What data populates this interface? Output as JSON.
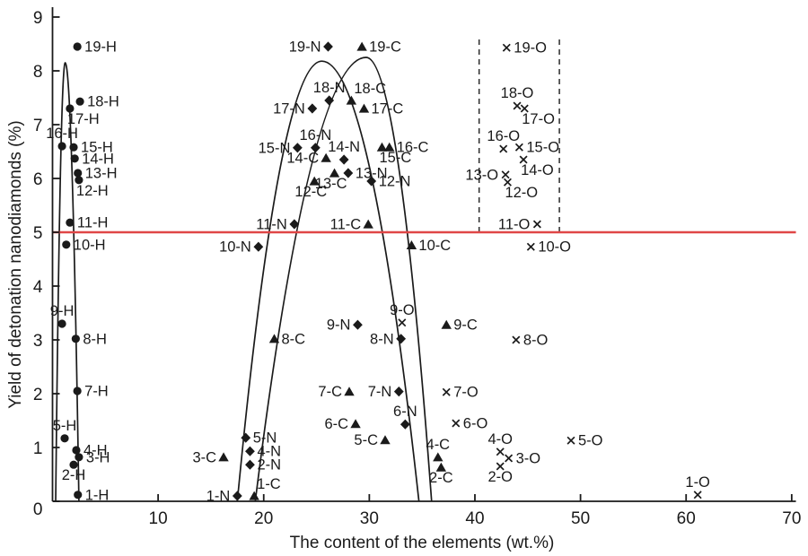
{
  "chart_data": {
    "type": "scatter",
    "title": "",
    "xlabel": "The content of the elements (wt.%)",
    "ylabel": "Yield of detonation nanodiamonds (%)",
    "xlim": [
      0,
      70
    ],
    "ylim": [
      0,
      9
    ],
    "x_ticks": [
      10,
      20,
      30,
      40,
      50,
      60,
      70
    ],
    "y_ticks": [
      0,
      1,
      2,
      3,
      4,
      5,
      6,
      7,
      8,
      9
    ],
    "grid": false,
    "legend_position": "none",
    "colors": {
      "ink": "#1a1a1a",
      "reference_line": "#e04747"
    },
    "reference_line": {
      "y": 5,
      "x_from": 0,
      "x_to": 70.4
    },
    "dashed_vlines": [
      {
        "x": 40.4,
        "y_from": 5,
        "y_to": 8.6
      },
      {
        "x": 48.0,
        "y_from": 5,
        "y_to": 8.6
      }
    ],
    "envelopes": [
      {
        "name": "H",
        "apex_x": 1.2,
        "apex_y": 8.15,
        "base_left_x": 0.3,
        "base_right_x": 2.5
      },
      {
        "name": "N",
        "apex_x": 25.5,
        "apex_y": 8.18,
        "base_left_x": 17.5,
        "base_right_x": 34.7
      },
      {
        "name": "C",
        "apex_x": 29.7,
        "apex_y": 8.25,
        "base_left_x": 19.2,
        "base_right_x": 35.9
      }
    ],
    "series": [
      {
        "name": "H",
        "marker": "circle",
        "points": [
          {
            "label": "1-H",
            "x": 2.4,
            "y": 0.12,
            "label_side": "right"
          },
          {
            "label": "2-H",
            "x": 2.0,
            "y": 0.68,
            "label_side": "below"
          },
          {
            "label": "3-H",
            "x": 2.5,
            "y": 0.82,
            "label_side": "right"
          },
          {
            "label": "4-H",
            "x": 2.25,
            "y": 0.95,
            "label_side": "right"
          },
          {
            "label": "5-H",
            "x": 1.15,
            "y": 1.17,
            "label_side": "above"
          },
          {
            "label": "7-H",
            "x": 2.35,
            "y": 2.05,
            "label_side": "right"
          },
          {
            "label": "8-H",
            "x": 2.2,
            "y": 3.02,
            "label_side": "right"
          },
          {
            "label": "9-H",
            "x": 0.9,
            "y": 3.3,
            "label_side": "above"
          },
          {
            "label": "10-H",
            "x": 1.3,
            "y": 4.77,
            "label_side": "right"
          },
          {
            "label": "11-H",
            "x": 1.65,
            "y": 5.18,
            "label_side": "right"
          },
          {
            "label": "12-H",
            "x": 2.5,
            "y": 5.97,
            "label_side": "below-right"
          },
          {
            "label": "13-H",
            "x": 2.4,
            "y": 6.1,
            "label_side": "right"
          },
          {
            "label": "14-H",
            "x": 2.1,
            "y": 6.37,
            "label_side": "right"
          },
          {
            "label": "15-H",
            "x": 2.0,
            "y": 6.58,
            "label_side": "right"
          },
          {
            "label": "16-H",
            "x": 0.9,
            "y": 6.6,
            "label_side": "above"
          },
          {
            "label": "17-H",
            "x": 1.65,
            "y": 7.3,
            "label_side": "below-right"
          },
          {
            "label": "18-H",
            "x": 2.6,
            "y": 7.43,
            "label_side": "right"
          },
          {
            "label": "19-H",
            "x": 2.35,
            "y": 8.45,
            "label_side": "right"
          }
        ]
      },
      {
        "name": "N",
        "marker": "diamond",
        "points": [
          {
            "label": "1-N",
            "x": 17.5,
            "y": 0.1,
            "label_side": "left"
          },
          {
            "label": "2-N",
            "x": 18.7,
            "y": 0.68,
            "label_side": "right"
          },
          {
            "label": "4-N",
            "x": 18.7,
            "y": 0.93,
            "label_side": "right"
          },
          {
            "label": "5-N",
            "x": 18.3,
            "y": 1.18,
            "label_side": "right"
          },
          {
            "label": "6-N",
            "x": 33.4,
            "y": 1.43,
            "label_side": "above"
          },
          {
            "label": "7-N",
            "x": 32.8,
            "y": 2.04,
            "label_side": "left"
          },
          {
            "label": "8-N",
            "x": 33.0,
            "y": 3.02,
            "label_side": "left"
          },
          {
            "label": "9-N",
            "x": 28.9,
            "y": 3.28,
            "label_side": "left"
          },
          {
            "label": "10-N",
            "x": 19.5,
            "y": 4.73,
            "label_side": "left"
          },
          {
            "label": "11-N",
            "x": 22.9,
            "y": 5.15,
            "label_side": "left"
          },
          {
            "label": "12-N",
            "x": 30.2,
            "y": 5.95,
            "label_side": "right"
          },
          {
            "label": "13-N",
            "x": 28.0,
            "y": 6.1,
            "label_side": "right"
          },
          {
            "label": "14-N",
            "x": 27.6,
            "y": 6.35,
            "label_side": "above"
          },
          {
            "label": "15-N",
            "x": 23.2,
            "y": 6.57,
            "label_side": "left"
          },
          {
            "label": "16-N",
            "x": 24.9,
            "y": 6.57,
            "label_side": "above"
          },
          {
            "label": "17-N",
            "x": 24.6,
            "y": 7.3,
            "label_side": "left"
          },
          {
            "label": "18-N",
            "x": 26.2,
            "y": 7.45,
            "label_side": "above"
          },
          {
            "label": "19-N",
            "x": 26.1,
            "y": 8.45,
            "label_side": "left"
          }
        ]
      },
      {
        "name": "C",
        "marker": "triangle",
        "points": [
          {
            "label": "1-C",
            "x": 19.1,
            "y": 0.1,
            "label_side": "above-right"
          },
          {
            "label": "2-C",
            "x": 36.8,
            "y": 0.63,
            "label_side": "below"
          },
          {
            "label": "3-C",
            "x": 16.2,
            "y": 0.82,
            "label_side": "left"
          },
          {
            "label": "4-C",
            "x": 36.5,
            "y": 0.82,
            "label_side": "above"
          },
          {
            "label": "5-C",
            "x": 31.5,
            "y": 1.14,
            "label_side": "left"
          },
          {
            "label": "6-C",
            "x": 28.7,
            "y": 1.44,
            "label_side": "left"
          },
          {
            "label": "7-C",
            "x": 28.1,
            "y": 2.04,
            "label_side": "left"
          },
          {
            "label": "8-C",
            "x": 21.0,
            "y": 3.02,
            "label_side": "right"
          },
          {
            "label": "9-C",
            "x": 37.3,
            "y": 3.28,
            "label_side": "right"
          },
          {
            "label": "10-C",
            "x": 34.0,
            "y": 4.76,
            "label_side": "right"
          },
          {
            "label": "11-C",
            "x": 29.9,
            "y": 5.15,
            "label_side": "left"
          },
          {
            "label": "12-C",
            "x": 24.8,
            "y": 5.95,
            "label_side": "below-left"
          },
          {
            "label": "13-C",
            "x": 26.7,
            "y": 6.1,
            "label_side": "below-left"
          },
          {
            "label": "14-C",
            "x": 25.9,
            "y": 6.38,
            "label_side": "left"
          },
          {
            "label": "15-C",
            "x": 31.2,
            "y": 6.58,
            "label_side": "below-right"
          },
          {
            "label": "16-C",
            "x": 31.9,
            "y": 6.58,
            "label_side": "right"
          },
          {
            "label": "17-C",
            "x": 29.5,
            "y": 7.3,
            "label_side": "right"
          },
          {
            "label": "18-C",
            "x": 28.3,
            "y": 7.45,
            "label_side": "above-right"
          },
          {
            "label": "19-C",
            "x": 29.3,
            "y": 8.45,
            "label_side": "right"
          }
        ]
      },
      {
        "name": "O",
        "marker": "cross",
        "points": [
          {
            "label": "1-O",
            "x": 61.1,
            "y": 0.12,
            "label_side": "above"
          },
          {
            "label": "2-O",
            "x": 42.4,
            "y": 0.65,
            "label_side": "below"
          },
          {
            "label": "3-O",
            "x": 43.2,
            "y": 0.8,
            "label_side": "right"
          },
          {
            "label": "4-O",
            "x": 42.4,
            "y": 0.92,
            "label_side": "above"
          },
          {
            "label": "5-O",
            "x": 49.1,
            "y": 1.13,
            "label_side": "right"
          },
          {
            "label": "6-O",
            "x": 38.2,
            "y": 1.45,
            "label_side": "right"
          },
          {
            "label": "7-O",
            "x": 37.3,
            "y": 2.03,
            "label_side": "right"
          },
          {
            "label": "8-O",
            "x": 43.9,
            "y": 3.0,
            "label_side": "right"
          },
          {
            "label": "9-O",
            "x": 33.1,
            "y": 3.32,
            "label_side": "above"
          },
          {
            "label": "10-O",
            "x": 45.3,
            "y": 4.73,
            "label_side": "right"
          },
          {
            "label": "11-O",
            "x": 45.9,
            "y": 5.15,
            "label_side": "left"
          },
          {
            "label": "12-O",
            "x": 43.1,
            "y": 5.93,
            "label_side": "below-right"
          },
          {
            "label": "13-O",
            "x": 42.9,
            "y": 6.07,
            "label_side": "left"
          },
          {
            "label": "14-O",
            "x": 44.6,
            "y": 6.35,
            "label_side": "below-right"
          },
          {
            "label": "15-O",
            "x": 44.2,
            "y": 6.58,
            "label_side": "right"
          },
          {
            "label": "16-O",
            "x": 42.7,
            "y": 6.55,
            "label_side": "above"
          },
          {
            "label": "17-O",
            "x": 44.7,
            "y": 7.3,
            "label_side": "below-right"
          },
          {
            "label": "18-O",
            "x": 44.0,
            "y": 7.35,
            "label_side": "above"
          },
          {
            "label": "19-O",
            "x": 43.0,
            "y": 8.43,
            "label_side": "right"
          }
        ]
      }
    ]
  }
}
